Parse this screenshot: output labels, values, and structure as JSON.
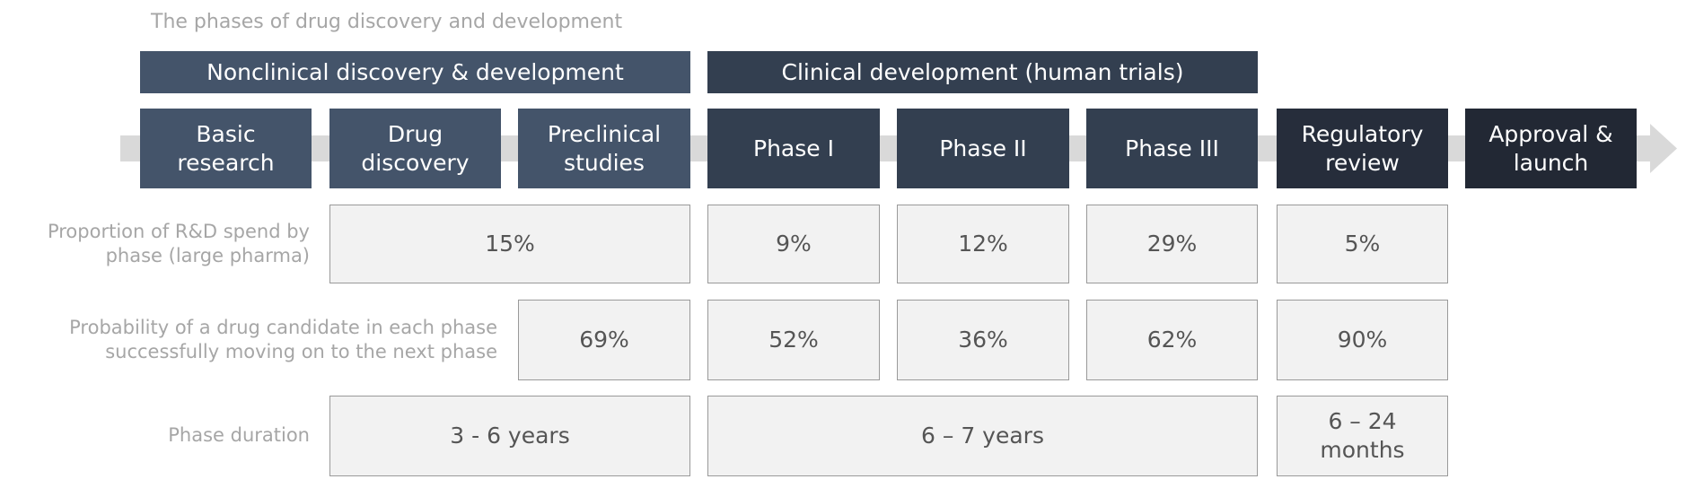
{
  "title": "The phases of drug discovery and development",
  "groups": [
    "Nonclinical discovery & development",
    "Clinical development (human trials)"
  ],
  "phases": [
    "Basic research",
    "Drug discovery",
    "Preclinical studies",
    "Phase I",
    "Phase II",
    "Phase III",
    "Regulatory review",
    "Approval & launch"
  ],
  "rows": [
    {
      "label": "Proportion of R&D spend by phase (large pharma)",
      "cells": [
        "15%",
        "9%",
        "12%",
        "29%",
        "5%"
      ]
    },
    {
      "label": "Probability of a drug candidate in each phase successfully moving on to the next phase",
      "cells": [
        "69%",
        "52%",
        "36%",
        "62%",
        "90%"
      ]
    },
    {
      "label": "Phase duration",
      "cells": [
        "3 - 6 years",
        "6 – 7 years",
        "6 – 24 months"
      ]
    }
  ]
}
